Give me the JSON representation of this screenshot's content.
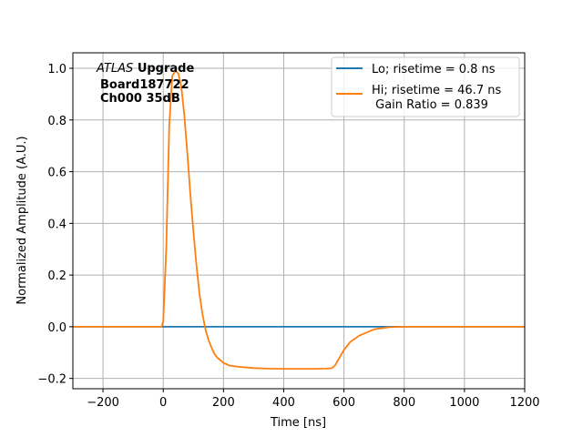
{
  "chart_data": {
    "type": "line",
    "title": "",
    "xlabel": "Time [ns]",
    "ylabel": "Normalized Amplitude (A.U.)",
    "xlim": [
      -300,
      1200
    ],
    "ylim": [
      -0.24,
      1.06
    ],
    "xticks": [
      -200,
      0,
      200,
      400,
      600,
      800,
      1000,
      1200
    ],
    "xtick_labels": [
      "−200",
      "0",
      "200",
      "400",
      "600",
      "800",
      "1000",
      "1200"
    ],
    "yticks": [
      -0.2,
      0.0,
      0.2,
      0.4,
      0.6,
      0.8,
      1.0
    ],
    "ytick_labels": [
      "−0.2",
      "0.0",
      "0.2",
      "0.4",
      "0.6",
      "0.8",
      "1.0"
    ],
    "grid": true,
    "legend_position": "top-right",
    "annotation": {
      "italic": "ATLAS",
      "bold": "Upgrade",
      "line2": "Board187722",
      "line3": "Ch000 35dB"
    },
    "series": [
      {
        "name": "Lo; risetime = 0.8 ns",
        "color": "#1f77b4",
        "x": [
          -300,
          0,
          200,
          400,
          600,
          800,
          1000,
          1200
        ],
        "y": [
          0.0,
          0.0,
          0.0,
          0.0,
          0.0,
          0.0,
          0.0,
          0.0
        ]
      },
      {
        "name": "Hi; risetime = 46.7 ns",
        "name_line2": " Gain Ratio = 0.839",
        "color": "#ff7f0e",
        "x": [
          -300,
          -100,
          -5,
          0,
          10,
          20,
          30,
          40,
          50,
          60,
          70,
          80,
          90,
          100,
          110,
          120,
          130,
          140,
          150,
          160,
          170,
          180,
          200,
          220,
          250,
          300,
          350,
          400,
          450,
          500,
          540,
          560,
          570,
          580,
          590,
          600,
          620,
          650,
          700,
          750,
          800,
          1000,
          1200
        ],
        "y": [
          0.0,
          0.0,
          0.0,
          0.02,
          0.3,
          0.78,
          0.97,
          0.99,
          0.98,
          0.93,
          0.82,
          0.67,
          0.51,
          0.37,
          0.24,
          0.13,
          0.05,
          -0.01,
          -0.05,
          -0.08,
          -0.105,
          -0.12,
          -0.14,
          -0.15,
          -0.155,
          -0.16,
          -0.162,
          -0.163,
          -0.163,
          -0.163,
          -0.162,
          -0.16,
          -0.15,
          -0.13,
          -0.11,
          -0.09,
          -0.06,
          -0.035,
          -0.01,
          -0.002,
          0.0,
          0.0,
          0.0
        ]
      }
    ]
  }
}
